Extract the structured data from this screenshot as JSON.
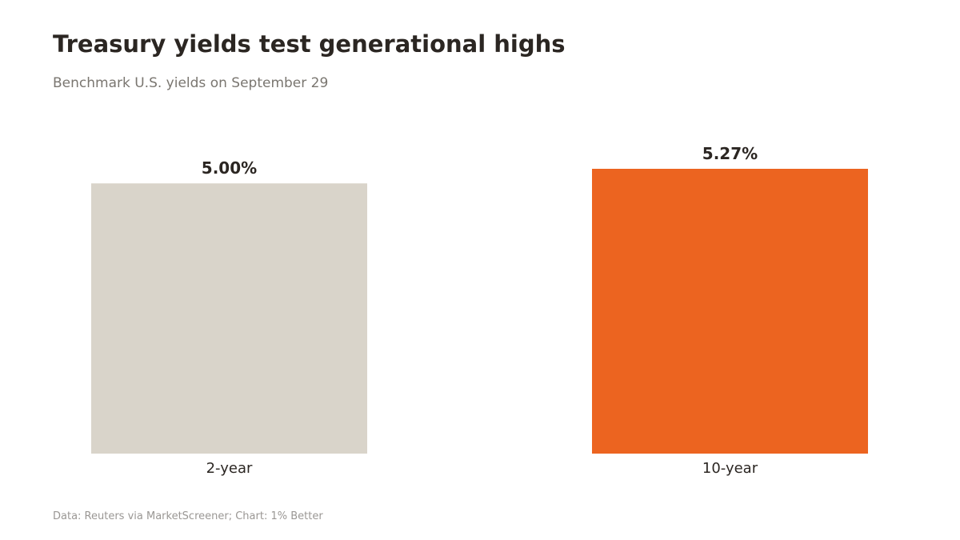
{
  "header": {
    "title": "Treasury yields test generational highs",
    "subtitle": "Benchmark U.S. yields on September 29"
  },
  "footer": {
    "source": "Data: Reuters via MarketScreener; Chart: 1% Better"
  },
  "chart_data": {
    "type": "bar",
    "title": "Treasury yields test generational highs",
    "subtitle": "Benchmark U.S. yields on September 29",
    "categories": [
      "2-year",
      "10-year"
    ],
    "values": [
      5.0,
      5.27
    ],
    "value_labels": [
      "5.00%",
      "5.27%"
    ],
    "bar_colors": [
      "#d9d4ca",
      "#ec6420"
    ],
    "xlabel": "",
    "ylabel": "",
    "ylim": [
      0,
      5.27
    ],
    "grid": false,
    "legend": "none"
  }
}
